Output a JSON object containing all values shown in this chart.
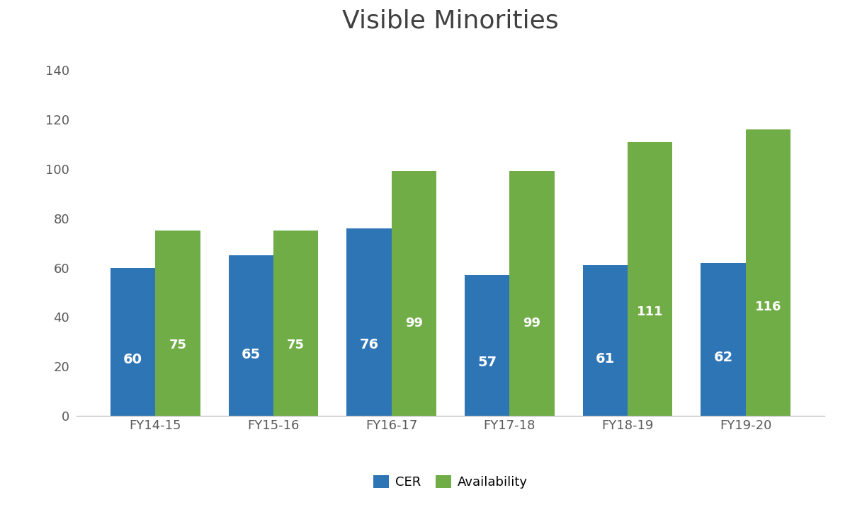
{
  "title": "Visible Minorities",
  "categories": [
    "FY14-15",
    "FY15-16",
    "FY16-17",
    "FY17-18",
    "FY18-19",
    "FY19-20"
  ],
  "cer_values": [
    60,
    65,
    76,
    57,
    61,
    62
  ],
  "availability_values": [
    75,
    75,
    99,
    99,
    111,
    116
  ],
  "cer_color": "#2E75B6",
  "availability_color": "#70AD47",
  "bar_width": 0.38,
  "ylim": [
    0,
    150
  ],
  "yticks": [
    0,
    20,
    40,
    60,
    80,
    100,
    120,
    140
  ],
  "title_fontsize": 26,
  "tick_fontsize": 13,
  "legend_fontsize": 13,
  "bar_label_fontsize_cer": 14,
  "bar_label_fontsize_avail": 13,
  "legend_entries": [
    "CER",
    "Availability"
  ],
  "background_color": "#ffffff",
  "title_color": "#404040",
  "tick_color": "#595959",
  "label_color_cer": "#ffffff",
  "label_color_avail_short": "#ffffff",
  "label_color_avail_tall": "#ffffff"
}
